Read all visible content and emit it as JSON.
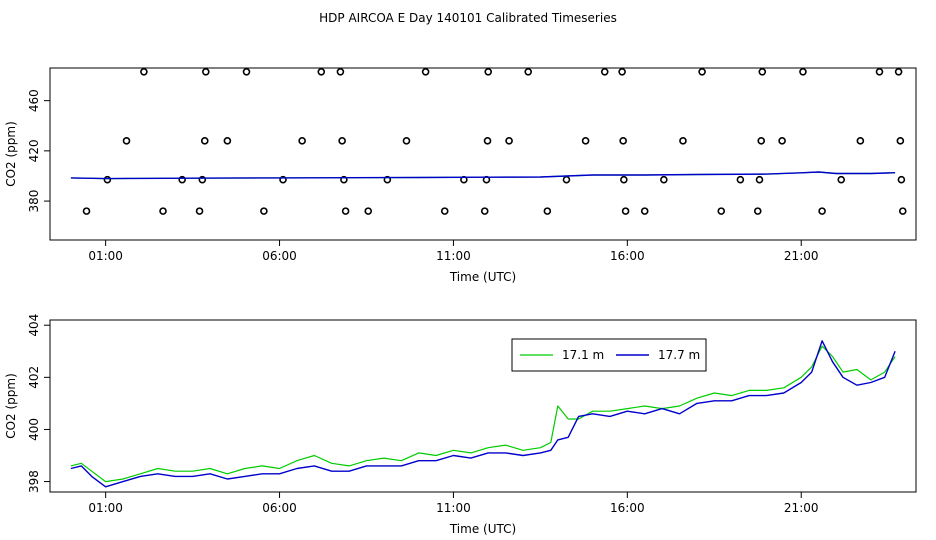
{
  "figure": {
    "title": "HDP AIRCOA E  Day 140101  Calibrated Timeseries"
  },
  "chart_data": [
    {
      "type": "scatter+line",
      "xlabel": "Time (UTC)",
      "ylabel": "CO2 (ppm)",
      "xlim": [
        -0.6,
        24.3
      ],
      "ylim": [
        349,
        486
      ],
      "xticks": [
        {
          "value": 1,
          "label": "01:00"
        },
        {
          "value": 6,
          "label": "06:00"
        },
        {
          "value": 11,
          "label": "11:00"
        },
        {
          "value": 16,
          "label": "16:00"
        },
        {
          "value": 21,
          "label": "21:00"
        }
      ],
      "yticks": [
        {
          "value": 380,
          "label": "380"
        },
        {
          "value": 420,
          "label": "420"
        },
        {
          "value": 460,
          "label": "460"
        }
      ],
      "calibration_points": [
        {
          "x": 0.45,
          "y": 372
        },
        {
          "x": 1.05,
          "y": 397
        },
        {
          "x": 1.6,
          "y": 428
        },
        {
          "x": 2.1,
          "y": 483
        },
        {
          "x": 2.65,
          "y": 372
        },
        {
          "x": 3.2,
          "y": 397
        },
        {
          "x": 3.7,
          "y": 372
        },
        {
          "x": 3.78,
          "y": 397
        },
        {
          "x": 3.85,
          "y": 428
        },
        {
          "x": 3.88,
          "y": 483
        },
        {
          "x": 4.5,
          "y": 428
        },
        {
          "x": 5.05,
          "y": 483
        },
        {
          "x": 5.55,
          "y": 372
        },
        {
          "x": 6.1,
          "y": 397
        },
        {
          "x": 6.65,
          "y": 428
        },
        {
          "x": 7.2,
          "y": 483
        },
        {
          "x": 7.75,
          "y": 483
        },
        {
          "x": 7.8,
          "y": 428
        },
        {
          "x": 7.85,
          "y": 397
        },
        {
          "x": 7.9,
          "y": 372
        },
        {
          "x": 8.55,
          "y": 372
        },
        {
          "x": 9.1,
          "y": 397
        },
        {
          "x": 9.65,
          "y": 428
        },
        {
          "x": 10.2,
          "y": 483
        },
        {
          "x": 10.75,
          "y": 372
        },
        {
          "x": 11.3,
          "y": 397
        },
        {
          "x": 11.9,
          "y": 372
        },
        {
          "x": 11.95,
          "y": 397
        },
        {
          "x": 11.98,
          "y": 428
        },
        {
          "x": 12.0,
          "y": 483
        },
        {
          "x": 12.6,
          "y": 428
        },
        {
          "x": 13.15,
          "y": 483
        },
        {
          "x": 13.7,
          "y": 372
        },
        {
          "x": 14.25,
          "y": 397
        },
        {
          "x": 14.8,
          "y": 428
        },
        {
          "x": 15.35,
          "y": 483
        },
        {
          "x": 15.85,
          "y": 483
        },
        {
          "x": 15.88,
          "y": 428
        },
        {
          "x": 15.9,
          "y": 397
        },
        {
          "x": 15.95,
          "y": 372
        },
        {
          "x": 16.5,
          "y": 372
        },
        {
          "x": 17.05,
          "y": 397
        },
        {
          "x": 17.6,
          "y": 428
        },
        {
          "x": 18.15,
          "y": 483
        },
        {
          "x": 18.7,
          "y": 372
        },
        {
          "x": 19.25,
          "y": 397
        },
        {
          "x": 19.75,
          "y": 372
        },
        {
          "x": 19.8,
          "y": 397
        },
        {
          "x": 19.85,
          "y": 428
        },
        {
          "x": 19.88,
          "y": 483
        },
        {
          "x": 20.45,
          "y": 428
        },
        {
          "x": 21.05,
          "y": 483
        },
        {
          "x": 21.6,
          "y": 372
        },
        {
          "x": 22.15,
          "y": 397
        },
        {
          "x": 22.7,
          "y": 428
        },
        {
          "x": 23.25,
          "y": 483
        },
        {
          "x": 23.8,
          "y": 483
        },
        {
          "x": 23.85,
          "y": 428
        },
        {
          "x": 23.88,
          "y": 397
        },
        {
          "x": 23.92,
          "y": 372
        }
      ],
      "series": [
        {
          "color": "#00cc00",
          "x": [
            0,
            1,
            2,
            4,
            6,
            8,
            10,
            12,
            13.5,
            15,
            16.5,
            18,
            20,
            21,
            21.5,
            22,
            23,
            23.7
          ],
          "y": [
            398.5,
            397.9,
            398.1,
            398.3,
            398.5,
            398.6,
            398.8,
            399.0,
            399.2,
            400.8,
            400.8,
            401.2,
            401.5,
            402.5,
            403.2,
            402.0,
            402.0,
            402.6
          ]
        },
        {
          "color": "#0000cc",
          "x": [
            0,
            1,
            2,
            4,
            6,
            8,
            10,
            12,
            13.5,
            15,
            16.5,
            18,
            20,
            21,
            21.5,
            22,
            23,
            23.7
          ],
          "y": [
            398.5,
            397.9,
            398.1,
            398.3,
            398.5,
            398.6,
            398.8,
            399.0,
            399.2,
            400.8,
            400.8,
            401.2,
            401.5,
            402.5,
            403.2,
            402.0,
            402.0,
            402.6
          ]
        }
      ]
    },
    {
      "type": "line",
      "xlabel": "Time (UTC)",
      "ylabel": "CO2 (ppm)",
      "xlim": [
        -0.6,
        24.3
      ],
      "ylim": [
        397.6,
        404.2
      ],
      "xticks": [
        {
          "value": 1,
          "label": "01:00"
        },
        {
          "value": 6,
          "label": "06:00"
        },
        {
          "value": 11,
          "label": "11:00"
        },
        {
          "value": 16,
          "label": "16:00"
        },
        {
          "value": 21,
          "label": "21:00"
        }
      ],
      "yticks": [
        {
          "value": 398,
          "label": "398"
        },
        {
          "value": 400,
          "label": "400"
        },
        {
          "value": 402,
          "label": "402"
        },
        {
          "value": 404,
          "label": "404"
        }
      ],
      "legend_position": "top-right",
      "series": [
        {
          "name": "17.1 m",
          "color": "#00cc00",
          "x": [
            0,
            0.3,
            0.6,
            1.0,
            1.5,
            2.0,
            2.5,
            3.0,
            3.5,
            4.0,
            4.5,
            5.0,
            5.5,
            6.0,
            6.5,
            7.0,
            7.5,
            8.0,
            8.5,
            9.0,
            9.5,
            10.0,
            10.5,
            11.0,
            11.5,
            12.0,
            12.5,
            13.0,
            13.5,
            13.8,
            14.0,
            14.3,
            14.6,
            15.0,
            15.5,
            16.0,
            16.5,
            17.0,
            17.5,
            18.0,
            18.5,
            19.0,
            19.5,
            20.0,
            20.5,
            21.0,
            21.3,
            21.6,
            21.9,
            22.2,
            22.6,
            23.0,
            23.4,
            23.7
          ],
          "y": [
            398.6,
            398.7,
            398.4,
            398.0,
            398.1,
            398.3,
            398.5,
            398.4,
            398.4,
            398.5,
            398.3,
            398.5,
            398.6,
            398.5,
            398.8,
            399.0,
            398.7,
            398.6,
            398.8,
            398.9,
            398.8,
            399.1,
            399.0,
            399.2,
            399.1,
            399.3,
            399.4,
            399.2,
            399.3,
            399.5,
            400.9,
            400.4,
            400.4,
            400.7,
            400.7,
            400.8,
            400.9,
            400.8,
            400.9,
            401.2,
            401.4,
            401.3,
            401.5,
            401.5,
            401.6,
            402.0,
            402.4,
            403.2,
            402.8,
            402.2,
            402.3,
            401.9,
            402.2,
            402.8
          ]
        },
        {
          "name": "17.7 m",
          "color": "#0000cc",
          "x": [
            0,
            0.3,
            0.6,
            1.0,
            1.5,
            2.0,
            2.5,
            3.0,
            3.5,
            4.0,
            4.5,
            5.0,
            5.5,
            6.0,
            6.5,
            7.0,
            7.5,
            8.0,
            8.5,
            9.0,
            9.5,
            10.0,
            10.5,
            11.0,
            11.5,
            12.0,
            12.5,
            13.0,
            13.5,
            13.8,
            14.0,
            14.3,
            14.6,
            15.0,
            15.5,
            16.0,
            16.5,
            17.0,
            17.5,
            18.0,
            18.5,
            19.0,
            19.5,
            20.0,
            20.5,
            21.0,
            21.3,
            21.6,
            21.9,
            22.2,
            22.6,
            23.0,
            23.4,
            23.7
          ],
          "y": [
            398.5,
            398.6,
            398.2,
            397.8,
            398.0,
            398.2,
            398.3,
            398.2,
            398.2,
            398.3,
            398.1,
            398.2,
            398.3,
            398.3,
            398.5,
            398.6,
            398.4,
            398.4,
            398.6,
            398.6,
            398.6,
            398.8,
            398.8,
            399.0,
            398.9,
            399.1,
            399.1,
            399.0,
            399.1,
            399.2,
            399.6,
            399.7,
            400.5,
            400.6,
            400.5,
            400.7,
            400.6,
            400.8,
            400.6,
            401.0,
            401.1,
            401.1,
            401.3,
            401.3,
            401.4,
            401.8,
            402.2,
            403.4,
            402.6,
            402.0,
            401.7,
            401.8,
            402.0,
            403.0
          ]
        }
      ]
    }
  ]
}
